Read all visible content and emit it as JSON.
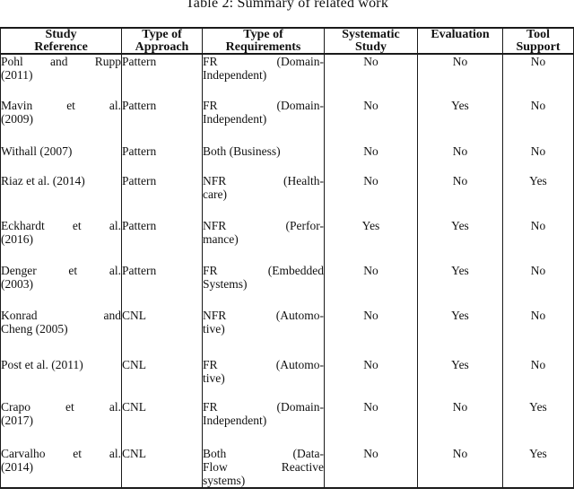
{
  "title": "Table 2: Summary of related work",
  "colors": {
    "text": "#111111",
    "border": "#1a1a1a",
    "background": "#ffffff"
  },
  "table": {
    "columns": [
      {
        "id": "study-reference",
        "label_lines": [
          "Study",
          "Reference"
        ]
      },
      {
        "id": "type-of-approach",
        "label_lines": [
          "Type of",
          "Approach"
        ]
      },
      {
        "id": "type-of-requirements",
        "label_lines": [
          "Type of",
          "Requirements"
        ]
      },
      {
        "id": "systematic-study",
        "label_lines": [
          "Systematic",
          "Study"
        ]
      },
      {
        "id": "evaluation",
        "label_lines": [
          "Evaluation"
        ]
      },
      {
        "id": "tool-support",
        "label_lines": [
          "Tool",
          "Support"
        ]
      }
    ],
    "rows": [
      {
        "study_lines": [
          "Pohl and Rupp",
          "(2011)"
        ],
        "approach": "Pattern",
        "requirements_lines": [
          "FR (Domain-",
          "Independent)"
        ],
        "systematic_study": "No",
        "evaluation": "No",
        "tool_support": "No"
      },
      {
        "study_lines": [
          "Mavin et al.",
          "(2009)"
        ],
        "approach": "Pattern",
        "requirements_lines": [
          "FR (Domain-",
          "Independent)"
        ],
        "systematic_study": "No",
        "evaluation": "Yes",
        "tool_support": "No"
      },
      {
        "study_lines": [
          "Withall (2007)"
        ],
        "approach": "Pattern",
        "requirements_lines": [
          "Both (Business)"
        ],
        "systematic_study": "No",
        "evaluation": "No",
        "tool_support": "No"
      },
      {
        "study_lines": [
          "Riaz et al. (2014)"
        ],
        "approach": "Pattern",
        "requirements_lines": [
          "NFR (Health-",
          "care)"
        ],
        "systematic_study": "No",
        "evaluation": "No",
        "tool_support": "Yes"
      },
      {
        "study_lines": [
          "Eckhardt et al.",
          "(2016)"
        ],
        "approach": "Pattern",
        "requirements_lines": [
          "NFR (Perfor-",
          "mance)"
        ],
        "systematic_study": "Yes",
        "evaluation": "Yes",
        "tool_support": "No"
      },
      {
        "study_lines": [
          "Denger et al.",
          "(2003)"
        ],
        "approach": "Pattern",
        "requirements_lines": [
          "FR (Embedded",
          "Systems)"
        ],
        "systematic_study": "No",
        "evaluation": "Yes",
        "tool_support": "No"
      },
      {
        "study_lines": [
          "Konrad and",
          "Cheng (2005)"
        ],
        "approach": "CNL",
        "requirements_lines": [
          "NFR (Automo-",
          "tive)"
        ],
        "systematic_study": "No",
        "evaluation": "Yes",
        "tool_support": "No"
      },
      {
        "study_lines": [
          "Post et al. (2011)"
        ],
        "approach": "CNL",
        "requirements_lines": [
          "FR (Automo-",
          "tive)"
        ],
        "systematic_study": "No",
        "evaluation": "Yes",
        "tool_support": "No"
      },
      {
        "study_lines": [
          "Crapo et al.",
          "(2017)"
        ],
        "approach": "CNL",
        "requirements_lines": [
          "FR (Domain-",
          "Independent)"
        ],
        "systematic_study": "No",
        "evaluation": "No",
        "tool_support": "Yes"
      },
      {
        "study_lines": [
          "Carvalho et al.",
          "(2014)"
        ],
        "approach": "CNL",
        "requirements_lines": [
          "Both (Data-",
          "Flow Reactive",
          "systems)"
        ],
        "systematic_study": "No",
        "evaluation": "No",
        "tool_support": "Yes"
      }
    ]
  }
}
